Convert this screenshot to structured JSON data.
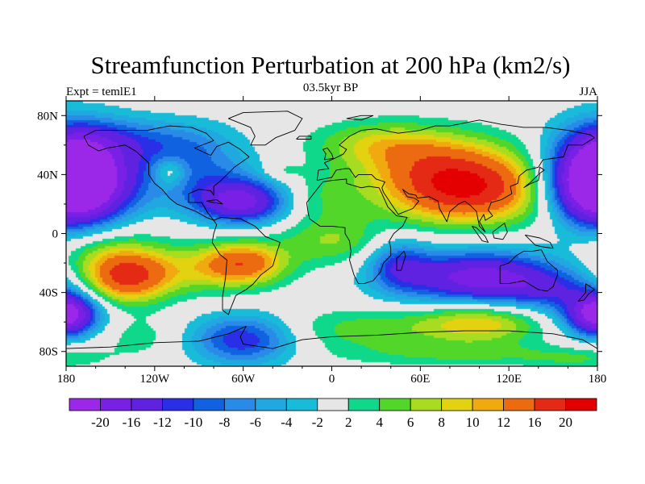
{
  "chart_data": {
    "type": "heatmap",
    "title": "Streamfunction Perturbation at 200 hPa (km2/s)",
    "subtitle_left": "Expt = temlE1",
    "subtitle_center": "03.5kyr BP",
    "subtitle_right": "JJA",
    "x_axis": {
      "range": [
        -180,
        180
      ],
      "ticks": [
        -180,
        -120,
        -60,
        0,
        60,
        120,
        180
      ],
      "tick_labels": [
        "180",
        "120W",
        "60W",
        "0",
        "60E",
        "120E",
        "180"
      ]
    },
    "y_axis": {
      "range": [
        -90,
        90
      ],
      "ticks": [
        80,
        40,
        0,
        -40,
        -80
      ],
      "tick_labels": [
        "80N",
        "40N",
        "0",
        "40S",
        "80S"
      ]
    },
    "colorbar": {
      "labels": [
        "-20",
        "-16",
        "-12",
        "-10",
        "-8",
        "-6",
        "-4",
        "-2",
        "2",
        "4",
        "6",
        "8",
        "10",
        "12",
        "16",
        "20"
      ],
      "levels": [
        -20,
        -16,
        -12,
        -10,
        -8,
        -6,
        -4,
        -2,
        2,
        4,
        6,
        8,
        10,
        12,
        16,
        20
      ],
      "colors": [
        "#9b28e8",
        "#7a1fe6",
        "#5f22e0",
        "#2a2ee6",
        "#1062e0",
        "#2a8ae8",
        "#22a8e0",
        "#18bcd8",
        "#e6e6e6",
        "#10d88a",
        "#52d62a",
        "#a8dc20",
        "#e2d210",
        "#f0aa10",
        "#ec6a10",
        "#e42a14",
        "#e40000"
      ]
    },
    "background_color": "#e6e6e6",
    "field_features": [
      {
        "lon": 90,
        "lat": 30,
        "value": 20,
        "sx": 38,
        "sy": 16
      },
      {
        "lon": 65,
        "lat": 52,
        "value": 8,
        "sx": 40,
        "sy": 14
      },
      {
        "lon": 30,
        "lat": 62,
        "value": 5,
        "sx": 30,
        "sy": 10
      },
      {
        "lon": -168,
        "lat": 35,
        "value": -20,
        "sx": 26,
        "sy": 22
      },
      {
        "lon": 178,
        "lat": 35,
        "value": -20,
        "sx": 22,
        "sy": 22
      },
      {
        "lon": -100,
        "lat": 55,
        "value": -8,
        "sx": 28,
        "sy": 14
      },
      {
        "lon": -60,
        "lat": 20,
        "value": -14,
        "sx": 22,
        "sy": 10
      },
      {
        "lon": -75,
        "lat": 30,
        "value": -7,
        "sx": 30,
        "sy": 12
      },
      {
        "lon": -150,
        "lat": 65,
        "value": -5,
        "sx": 30,
        "sy": 10
      },
      {
        "lon": -110,
        "lat": 42,
        "value": 7,
        "sx": 8,
        "sy": 7
      },
      {
        "lon": -35,
        "lat": 42,
        "value": 3,
        "sx": 10,
        "sy": 5
      },
      {
        "lon": -10,
        "lat": 25,
        "value": 4,
        "sx": 22,
        "sy": 12
      },
      {
        "lon": 100,
        "lat": -30,
        "value": -18,
        "sx": 40,
        "sy": 13
      },
      {
        "lon": 45,
        "lat": -20,
        "value": -8,
        "sx": 14,
        "sy": 12
      },
      {
        "lon": 150,
        "lat": -40,
        "value": -6,
        "sx": 25,
        "sy": 10
      },
      {
        "lon": -140,
        "lat": -30,
        "value": 15,
        "sx": 20,
        "sy": 12
      },
      {
        "lon": -60,
        "lat": -20,
        "value": 13,
        "sx": 20,
        "sy": 10
      },
      {
        "lon": -100,
        "lat": -25,
        "value": 6,
        "sx": 35,
        "sy": 12
      },
      {
        "lon": -160,
        "lat": -10,
        "value": 6,
        "sx": 28,
        "sy": 12
      },
      {
        "lon": 0,
        "lat": -5,
        "value": 6,
        "sx": 25,
        "sy": 12
      },
      {
        "lon": -60,
        "lat": -72,
        "value": -12,
        "sx": 25,
        "sy": 12
      },
      {
        "lon": -180,
        "lat": -55,
        "value": -12,
        "sx": 18,
        "sy": 10
      },
      {
        "lon": 180,
        "lat": -55,
        "value": -12,
        "sx": 12,
        "sy": 10
      },
      {
        "lon": 100,
        "lat": -60,
        "value": 10,
        "sx": 30,
        "sy": 10
      },
      {
        "lon": 20,
        "lat": -65,
        "value": 5,
        "sx": 40,
        "sy": 10
      },
      {
        "lon": -130,
        "lat": -70,
        "value": 3,
        "sx": 20,
        "sy": 10
      },
      {
        "lon": 90,
        "lat": -82,
        "value": 4,
        "sx": 60,
        "sy": 6
      },
      {
        "lon": 170,
        "lat": -85,
        "value": 3,
        "sx": 25,
        "sy": 5
      },
      {
        "lon": -180,
        "lat": 10,
        "value": 3,
        "sx": 30,
        "sy": 10
      }
    ]
  }
}
